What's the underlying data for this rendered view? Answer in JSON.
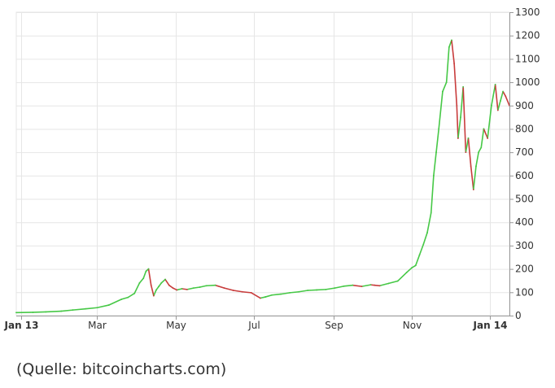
{
  "chart_data": {
    "type": "line",
    "title": "",
    "xlabel": "",
    "ylabel": "",
    "x_tick_labels": [
      {
        "label": "Jan 13",
        "date": "2013-01-01",
        "bold": true
      },
      {
        "label": "Mar",
        "date": "2013-03-01",
        "bold": false
      },
      {
        "label": "May",
        "date": "2013-05-01",
        "bold": false
      },
      {
        "label": "Jul",
        "date": "2013-07-01",
        "bold": false
      },
      {
        "label": "Sep",
        "date": "2013-09-01",
        "bold": false
      },
      {
        "label": "Nov",
        "date": "2013-11-01",
        "bold": false
      },
      {
        "label": "Jan 14",
        "date": "2014-01-01",
        "bold": true
      }
    ],
    "y_tick_labels": [
      "0",
      "100",
      "200",
      "300",
      "400",
      "500",
      "600",
      "700",
      "800",
      "900",
      "1000",
      "1100",
      "1200",
      "1300"
    ],
    "ylim": [
      0,
      1300
    ],
    "xlim": [
      "2012-12-28",
      "2014-01-16"
    ],
    "grid": true,
    "y_axis_side": "right",
    "colors": {
      "up": "#46c846",
      "down": "#c83c3c",
      "grid": "#e6e6e6",
      "axis": "#999999"
    },
    "series": [
      {
        "x": [
          "2012-12-28",
          "2013-01-10",
          "2013-01-20",
          "2013-02-01",
          "2013-02-10",
          "2013-02-20",
          "2013-03-01",
          "2013-03-10",
          "2013-03-20",
          "2013-03-25",
          "2013-03-30",
          "2013-04-03",
          "2013-04-06",
          "2013-04-08",
          "2013-04-10",
          "2013-04-12",
          "2013-04-14",
          "2013-04-16",
          "2013-04-18",
          "2013-04-20",
          "2013-04-23",
          "2013-04-26",
          "2013-04-29",
          "2013-05-02",
          "2013-05-06",
          "2013-05-10",
          "2013-05-15",
          "2013-05-20",
          "2013-05-25",
          "2013-06-01",
          "2013-06-08",
          "2013-06-15",
          "2013-06-22",
          "2013-06-29",
          "2013-07-06",
          "2013-07-10",
          "2013-07-15",
          "2013-07-22",
          "2013-07-29",
          "2013-08-05",
          "2013-08-12",
          "2013-08-19",
          "2013-08-26",
          "2013-09-02",
          "2013-09-09",
          "2013-09-16",
          "2013-09-23",
          "2013-09-30",
          "2013-10-03",
          "2013-10-07",
          "2013-10-14",
          "2013-10-21",
          "2013-10-28",
          "2013-11-01",
          "2013-11-04",
          "2013-11-07",
          "2013-11-10",
          "2013-11-13",
          "2013-11-16",
          "2013-11-18",
          "2013-11-20",
          "2013-11-22",
          "2013-11-25",
          "2013-11-28",
          "2013-11-30",
          "2013-12-02",
          "2013-12-04",
          "2013-12-06",
          "2013-12-07",
          "2013-12-09",
          "2013-12-11",
          "2013-12-13",
          "2013-12-15",
          "2013-12-17",
          "2013-12-19",
          "2013-12-21",
          "2013-12-23",
          "2013-12-25",
          "2013-12-27",
          "2013-12-30",
          "2014-01-02",
          "2014-01-05",
          "2014-01-07",
          "2014-01-09",
          "2014-01-11",
          "2014-01-13",
          "2014-01-16"
        ],
        "y": [
          13,
          14,
          16,
          19,
          24,
          29,
          34,
          45,
          70,
          78,
          95,
          140,
          160,
          190,
          200,
          130,
          85,
          110,
          125,
          140,
          155,
          130,
          118,
          110,
          115,
          112,
          118,
          122,
          128,
          130,
          118,
          108,
          102,
          98,
          75,
          80,
          88,
          92,
          98,
          102,
          108,
          110,
          112,
          118,
          126,
          130,
          125,
          132,
          130,
          128,
          138,
          148,
          185,
          205,
          215,
          260,
          305,
          355,
          440,
          600,
          700,
          800,
          960,
          1000,
          1150,
          1180,
          1080,
          900,
          760,
          850,
          980,
          700,
          760,
          640,
          540,
          640,
          700,
          720,
          800,
          760,
          900,
          990,
          880,
          920,
          960,
          940,
          900
        ]
      }
    ]
  },
  "source_label": "(Quelle: bitcoincharts.com)"
}
